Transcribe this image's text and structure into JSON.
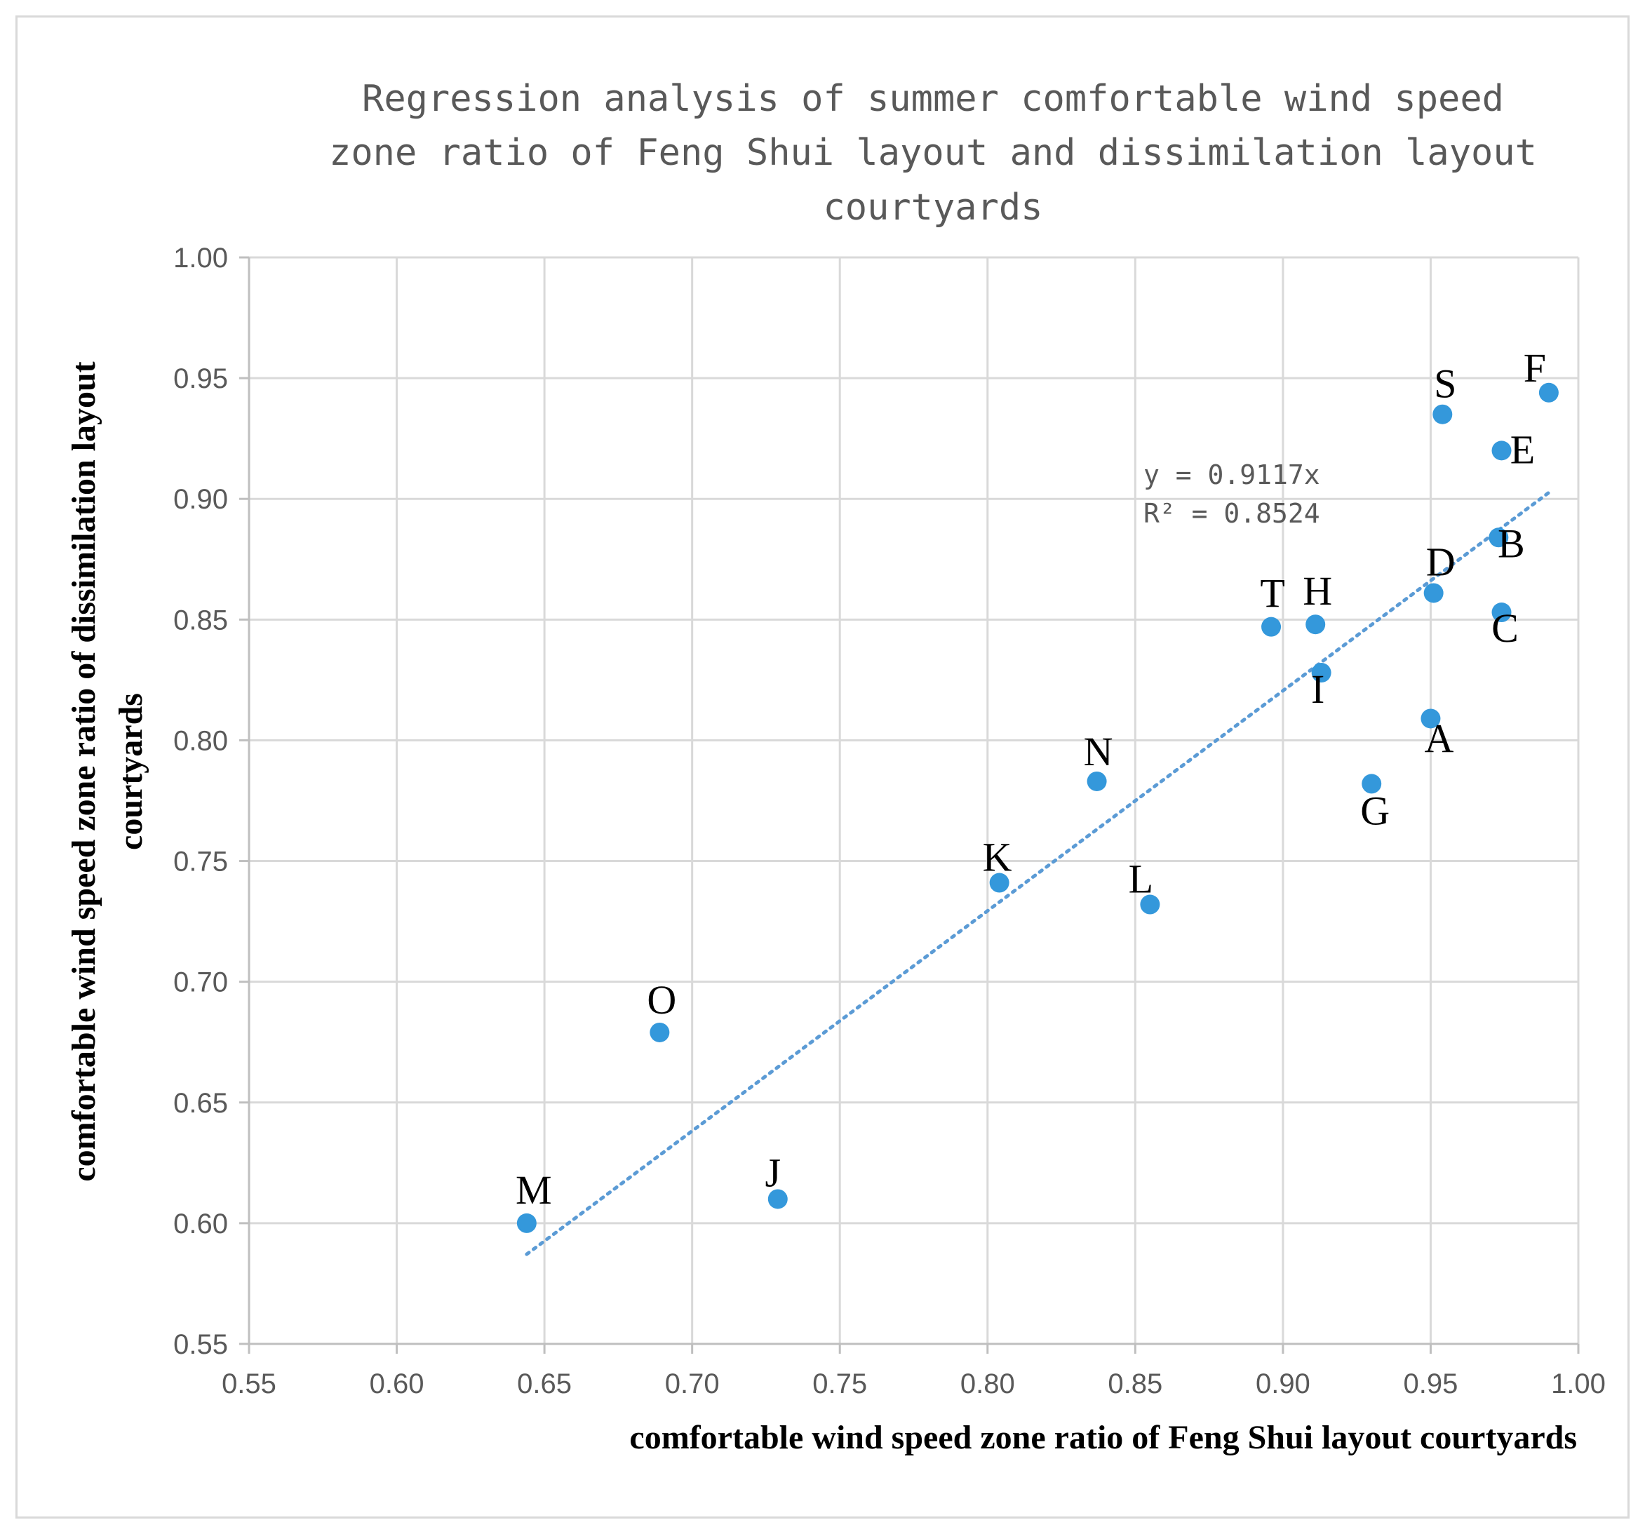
{
  "chart_data": {
    "type": "scatter",
    "title_lines": [
      "Regression analysis of summer comfortable wind speed",
      "zone ratio of Feng Shui layout and dissimilation layout",
      "courtyards"
    ],
    "xlabel": "comfortable wind speed zone ratio of  Feng Shui layout courtyards",
    "ylabel_lines": [
      "comfortable wind speed zone ratio of dissimilation layout",
      "courtyards"
    ],
    "xlim": [
      0.55,
      1.0
    ],
    "ylim": [
      0.55,
      1.0
    ],
    "xticks": [
      "0.55",
      "0.60",
      "0.65",
      "0.70",
      "0.75",
      "0.80",
      "0.85",
      "0.90",
      "0.95",
      "1.00"
    ],
    "yticks": [
      "0.55",
      "0.60",
      "0.65",
      "0.70",
      "0.75",
      "0.80",
      "0.85",
      "0.90",
      "0.95",
      "1.00"
    ],
    "grid": true,
    "marker_color": "#3498db",
    "trendline_color": "#5b9bd5",
    "points": [
      {
        "label": "A",
        "x": 0.95,
        "y": 0.809
      },
      {
        "label": "B",
        "x": 0.973,
        "y": 0.884
      },
      {
        "label": "C",
        "x": 0.974,
        "y": 0.853
      },
      {
        "label": "D",
        "x": 0.951,
        "y": 0.861
      },
      {
        "label": "E",
        "x": 0.974,
        "y": 0.92
      },
      {
        "label": "F",
        "x": 0.99,
        "y": 0.944
      },
      {
        "label": "G",
        "x": 0.93,
        "y": 0.782
      },
      {
        "label": "H",
        "x": 0.911,
        "y": 0.848
      },
      {
        "label": "I",
        "x": 0.913,
        "y": 0.828
      },
      {
        "label": "J",
        "x": 0.729,
        "y": 0.61
      },
      {
        "label": "K",
        "x": 0.804,
        "y": 0.741
      },
      {
        "label": "L",
        "x": 0.855,
        "y": 0.732
      },
      {
        "label": "M",
        "x": 0.644,
        "y": 0.6
      },
      {
        "label": "N",
        "x": 0.837,
        "y": 0.783
      },
      {
        "label": "O",
        "x": 0.689,
        "y": 0.679
      },
      {
        "label": "S",
        "x": 0.954,
        "y": 0.935
      },
      {
        "label": "T",
        "x": 0.896,
        "y": 0.847
      }
    ],
    "trendline": {
      "slope": 0.9117,
      "x_range": [
        0.644,
        0.99
      ],
      "equation": "y = 0.9117x",
      "r_squared": "R² = 0.8524"
    }
  }
}
